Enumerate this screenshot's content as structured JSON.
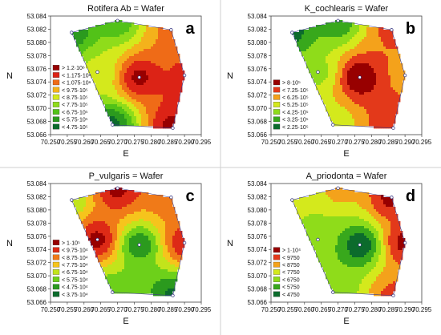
{
  "figure": {
    "panels": [
      {
        "letter": "a",
        "title": "Rotifera Ab = Wafer",
        "xlabel": "E",
        "ylabel": "N",
        "legend": [
          "> 1.2·10⁶",
          "< 1.175·10⁶",
          "< 1.075·10⁶",
          "< 9.75·10⁵",
          "< 8.75·10⁵",
          "< 7.75·10⁵",
          "< 6.75·10⁵",
          "< 5.75·10⁵",
          "< 4.75·10⁵"
        ]
      },
      {
        "letter": "b",
        "title": "K_cochlearis = Wafer",
        "xlabel": "E",
        "ylabel": "N",
        "legend": [
          "> 8·10⁵",
          "< 7.25·10⁵",
          "< 6.25·10⁵",
          "< 5.25·10⁵",
          "< 4.25·10⁵",
          "< 3.25·10⁵",
          "< 2.25·10⁵"
        ]
      },
      {
        "letter": "c",
        "title": "P_vulgaris = Wafer",
        "xlabel": "E",
        "ylabel": "N",
        "legend": [
          "> 1·10⁵",
          "< 9.75·10⁴",
          "< 8.75·10⁴",
          "< 7.75·10⁴",
          "< 6.75·10⁴",
          "< 5.75·10⁴",
          "< 4.75·10⁴",
          "< 3.75·10⁴"
        ]
      },
      {
        "letter": "d",
        "title": "A_priodonta = Wafer",
        "xlabel": "E",
        "ylabel": "N",
        "legend": [
          "> 1·10⁴",
          "< 9750",
          "< 8750",
          "< 7750",
          "< 6750",
          "< 5750",
          "< 4750"
        ]
      }
    ]
  },
  "chart_data": [
    {
      "type": "heatmap",
      "title": "Rotifera Ab = Wafer",
      "xlabel": "E",
      "ylabel": "N",
      "xlim": [
        70.25,
        70.295
      ],
      "ylim": [
        53.066,
        53.084
      ],
      "xticks": [
        "70.250",
        "70.255",
        "70.260",
        "70.265",
        "70.270",
        "70.275",
        "70.280",
        "70.285",
        "70.290",
        "70.295"
      ],
      "yticks": [
        "53.066",
        "53.068",
        "53.070",
        "53.072",
        "53.074",
        "53.076",
        "53.078",
        "53.080",
        "53.082",
        "53.084"
      ],
      "stations": [
        {
          "x": 70.2563,
          "y": 53.0815,
          "v": 500000
        },
        {
          "x": 70.27,
          "y": 53.0833,
          "v": 600000
        },
        {
          "x": 70.286,
          "y": 53.0819,
          "v": 1000000
        },
        {
          "x": 70.29,
          "y": 53.075,
          "v": 1100000
        },
        {
          "x": 70.2865,
          "y": 53.067,
          "v": 1210000
        },
        {
          "x": 70.2685,
          "y": 53.0675,
          "v": 450000
        },
        {
          "x": 70.264,
          "y": 53.0755,
          "v": 800000
        },
        {
          "x": 70.2765,
          "y": 53.0747,
          "v": 1200000
        }
      ],
      "levels": [
        475000,
        575000,
        675000,
        775000,
        875000,
        975000,
        1075000,
        1175000,
        1200000
      ],
      "colors": [
        "#0c6b2c",
        "#2b9a1e",
        "#52c218",
        "#8fdc1a",
        "#d4e91c",
        "#f4b21b",
        "#ef6b17",
        "#dc2316",
        "#980000"
      ]
    },
    {
      "type": "heatmap",
      "title": "K_cochlearis = Wafer",
      "xlabel": "E",
      "ylabel": "N",
      "xlim": [
        70.25,
        70.295
      ],
      "ylim": [
        53.066,
        53.084
      ],
      "xticks": [
        "70.250",
        "70.255",
        "70.260",
        "70.265",
        "70.270",
        "70.275",
        "70.280",
        "70.285",
        "70.290",
        "70.295"
      ],
      "yticks": [
        "53.066",
        "53.068",
        "53.070",
        "53.072",
        "53.074",
        "53.076",
        "53.078",
        "53.080",
        "53.082",
        "53.084"
      ],
      "stations": [
        {
          "x": 70.2563,
          "y": 53.0815,
          "v": 200000
        },
        {
          "x": 70.27,
          "y": 53.0833,
          "v": 250000
        },
        {
          "x": 70.286,
          "y": 53.0819,
          "v": 650000
        },
        {
          "x": 70.29,
          "y": 53.075,
          "v": 600000
        },
        {
          "x": 70.2865,
          "y": 53.067,
          "v": 700000
        },
        {
          "x": 70.2685,
          "y": 53.0675,
          "v": 450000
        },
        {
          "x": 70.264,
          "y": 53.0755,
          "v": 400000
        },
        {
          "x": 70.2765,
          "y": 53.0747,
          "v": 820000
        }
      ],
      "levels": [
        225000,
        325000,
        425000,
        525000,
        625000,
        725000,
        800000
      ],
      "colors": [
        "#0c6b2c",
        "#38a81c",
        "#8fdc1a",
        "#d4e91c",
        "#f4a21b",
        "#e3391a",
        "#980000"
      ]
    },
    {
      "type": "heatmap",
      "title": "P_vulgaris = Wafer",
      "xlabel": "E",
      "ylabel": "N",
      "xlim": [
        70.25,
        70.295
      ],
      "ylim": [
        53.066,
        53.084
      ],
      "xticks": [
        "70.250",
        "70.255",
        "70.260",
        "70.265",
        "70.270",
        "70.275",
        "70.280",
        "70.285",
        "70.290",
        "70.295"
      ],
      "yticks": [
        "53.066",
        "53.068",
        "53.070",
        "53.072",
        "53.074",
        "53.076",
        "53.078",
        "53.080",
        "53.082",
        "53.084"
      ],
      "stations": [
        {
          "x": 70.2563,
          "y": 53.0815,
          "v": 60000
        },
        {
          "x": 70.27,
          "y": 53.0833,
          "v": 100000
        },
        {
          "x": 70.286,
          "y": 53.0819,
          "v": 85000
        },
        {
          "x": 70.29,
          "y": 53.075,
          "v": 95000
        },
        {
          "x": 70.2865,
          "y": 53.067,
          "v": 36000
        },
        {
          "x": 70.2685,
          "y": 53.0675,
          "v": 50000
        },
        {
          "x": 70.264,
          "y": 53.0755,
          "v": 100000
        },
        {
          "x": 70.2765,
          "y": 53.0747,
          "v": 40000
        }
      ],
      "levels": [
        37500,
        47500,
        57500,
        67500,
        77500,
        87500,
        97500,
        100000
      ],
      "colors": [
        "#0c6b2c",
        "#2b9a1e",
        "#6dd01a",
        "#c2e41b",
        "#f6c41c",
        "#f07a18",
        "#dd2a16",
        "#980000"
      ]
    },
    {
      "type": "heatmap",
      "title": "A_priodonta = Wafer",
      "xlabel": "E",
      "ylabel": "N",
      "xlim": [
        70.25,
        70.295
      ],
      "ylim": [
        53.066,
        53.084
      ],
      "xticks": [
        "70.250",
        "70.255",
        "70.260",
        "70.265",
        "70.270",
        "70.275",
        "70.280",
        "70.285",
        "70.290",
        "70.295"
      ],
      "yticks": [
        "53.066",
        "53.068",
        "53.070",
        "53.072",
        "53.074",
        "53.076",
        "53.078",
        "53.080",
        "53.082",
        "53.084"
      ],
      "stations": [
        {
          "x": 70.2563,
          "y": 53.0815,
          "v": 7000
        },
        {
          "x": 70.27,
          "y": 53.0833,
          "v": 8000
        },
        {
          "x": 70.286,
          "y": 53.0819,
          "v": 10000
        },
        {
          "x": 70.29,
          "y": 53.075,
          "v": 10000
        },
        {
          "x": 70.2865,
          "y": 53.067,
          "v": 9000
        },
        {
          "x": 70.2685,
          "y": 53.0675,
          "v": 6000
        },
        {
          "x": 70.264,
          "y": 53.0755,
          "v": 6000
        },
        {
          "x": 70.2765,
          "y": 53.0747,
          "v": 4000
        }
      ],
      "levels": [
        4750,
        5750,
        6750,
        7750,
        8750,
        9750,
        10000
      ],
      "colors": [
        "#0c6b2c",
        "#38a81c",
        "#8fdc1a",
        "#d4e91c",
        "#f4a21b",
        "#e3391a",
        "#980000"
      ]
    }
  ]
}
